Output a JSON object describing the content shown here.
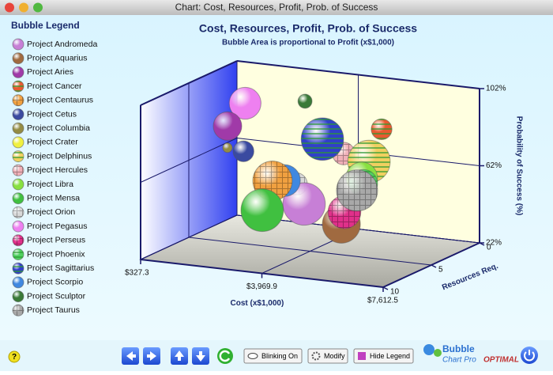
{
  "window_title": "Chart: Cost, Resources, Profit, Prob. of Success",
  "chart_data": {
    "type": "bubble3d",
    "title": "Cost, Resources, Profit, Prob. of Success",
    "subtitle": "Bubble Area is proportional to Profit (x$1,000)",
    "x_label": "Cost (x$1,000)",
    "z_label": "Resources Req.",
    "y_label": "Probability of Success (%)",
    "legend_title": "Bubble Legend",
    "xlim": [
      327.3,
      7612.5
    ],
    "xticks": [
      {
        "value": 327.3,
        "label": "$327.3"
      },
      {
        "value": 3969.9,
        "label": "$3,969.9"
      },
      {
        "value": 7612.5,
        "label": "$7,612.5"
      }
    ],
    "zlim": [
      0,
      10
    ],
    "zticks": [
      0,
      5,
      10
    ],
    "ylim": [
      22,
      102
    ],
    "yticks": [
      {
        "value": 22,
        "label": "22%"
      },
      {
        "value": 62,
        "label": "62%"
      },
      {
        "value": 102,
        "label": "102%"
      }
    ],
    "series": [
      {
        "name": "Project Andromeda",
        "color": "#c77fd6",
        "pattern": "solid",
        "x": 4080,
        "z": 6,
        "y": 49,
        "size": 500
      },
      {
        "name": "Project Aquarius",
        "color": "#a06a40",
        "pattern": "solid",
        "x": 4620,
        "z": 4,
        "y": 35,
        "size": 400
      },
      {
        "name": "Project Aries",
        "color": "#a03aa8",
        "pattern": "solid",
        "x": 1490,
        "z": 5,
        "y": 82,
        "size": 225
      },
      {
        "name": "Project Cancer",
        "color": "#e85a30",
        "pattern": "stripes",
        "x": 4960,
        "z": 1,
        "y": 78,
        "size": 120
      },
      {
        "name": "Project Centaurus",
        "color": "#f0a040",
        "pattern": "grid",
        "x": 3420,
        "z": 7,
        "y": 62,
        "size": 430
      },
      {
        "name": "Project Cetus",
        "color": "#3a4aa0",
        "pattern": "solid",
        "x": 1680,
        "z": 4,
        "y": 67,
        "size": 120
      },
      {
        "name": "Project Columbia",
        "color": "#948c44",
        "pattern": "solid",
        "x": 910,
        "z": 3,
        "y": 65,
        "size": 25
      },
      {
        "name": "Project Crater",
        "color": "#f0f040",
        "pattern": "solid",
        "x": 4230,
        "z": 1,
        "y": 57,
        "size": 70
      },
      {
        "name": "Project Delphinus",
        "color": "#f0d060",
        "pattern": "stripes",
        "x": 5740,
        "z": 5,
        "y": 72,
        "size": 500
      },
      {
        "name": "Project Hercules",
        "color": "#f0b0b8",
        "pattern": "grid",
        "x": 4110,
        "z": 2,
        "y": 66,
        "size": 140
      },
      {
        "name": "Project Libra",
        "color": "#88e040",
        "pattern": "solid",
        "x": 5520,
        "z": 5,
        "y": 63,
        "size": 280
      },
      {
        "name": "Project Mensa",
        "color": "#40c040",
        "pattern": "solid",
        "x": 3400,
        "z": 8,
        "y": 49,
        "size": 500
      },
      {
        "name": "Project Orion",
        "color": "#d8d8d8",
        "pattern": "grid",
        "x": 3550,
        "z": 5,
        "y": 56,
        "size": 140
      },
      {
        "name": "Project Pegasus",
        "color": "#ee80f0",
        "pattern": "solid",
        "x": 1730,
        "z": 4,
        "y": 92,
        "size": 280
      },
      {
        "name": "Project Perseus",
        "color": "#e0308a",
        "pattern": "grid",
        "x": 5580,
        "z": 7,
        "y": 50,
        "size": 300
      },
      {
        "name": "Project Phoenix",
        "color": "#50d060",
        "pattern": "stripes",
        "x": 5860,
        "z": 6,
        "y": 63,
        "size": 225
      },
      {
        "name": "Project Sagittarius",
        "color": "#3040c8",
        "pattern": "stripes",
        "x": 4050,
        "z": 4,
        "y": 78,
        "size": 500
      },
      {
        "name": "Project Scorpio",
        "color": "#4088e0",
        "pattern": "solid",
        "x": 3490,
        "z": 6,
        "y": 60,
        "size": 280
      },
      {
        "name": "Project Sculptor",
        "color": "#3a7a38",
        "pattern": "solid",
        "x": 2660,
        "z": 1,
        "y": 88,
        "size": 55
      },
      {
        "name": "Project Taurus",
        "color": "#a8a8a8",
        "pattern": "grid",
        "x": 5960,
        "z": 7,
        "y": 62,
        "size": 470
      }
    ]
  },
  "toolbar": {
    "blink": "Blinking On",
    "modify": "Modify",
    "legend": "Hide Legend",
    "help": "?"
  },
  "logo": {
    "word": "Bubble",
    "product": "Chart Pro",
    "edition": "OPTIMAL"
  }
}
